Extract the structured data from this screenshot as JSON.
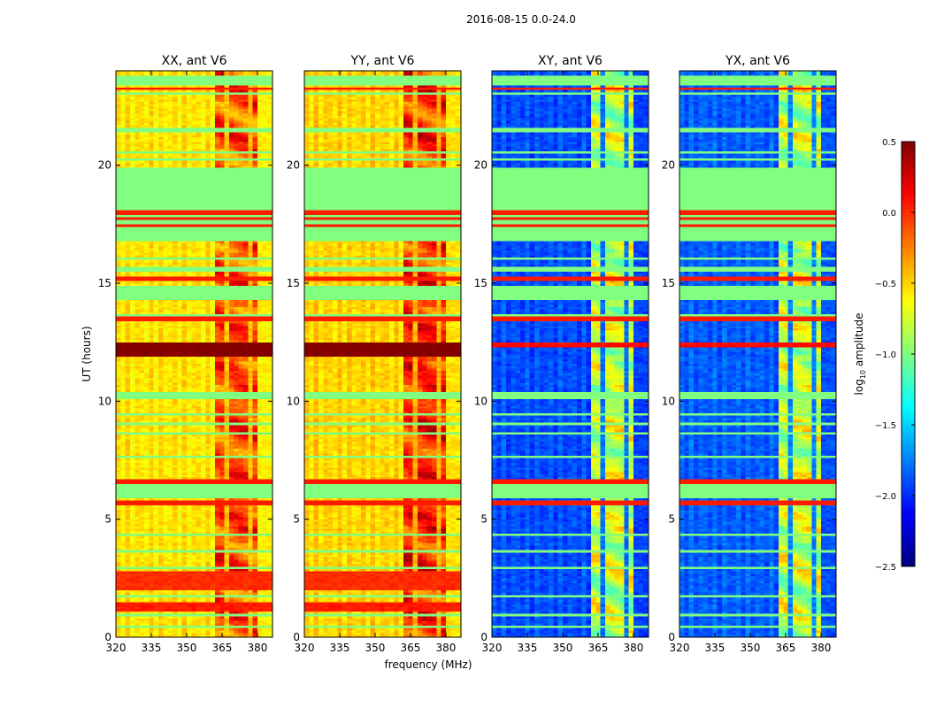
{
  "chart_data": {
    "type": "heatmap",
    "title": "2016-08-15 0.0-24.0",
    "xlabel": "frequency (MHz)",
    "ylabel": "UT (hours)",
    "xlim": [
      320,
      386.4
    ],
    "ylim": [
      0,
      24
    ],
    "xticks": [
      "320",
      "335",
      "350",
      "365",
      "380"
    ],
    "xtick_values": [
      320,
      335,
      350,
      365,
      380
    ],
    "yticks": [
      "0",
      "5",
      "10",
      "15",
      "20"
    ],
    "ytick_values": [
      0,
      5,
      10,
      15,
      20
    ],
    "colormap": "jet",
    "colorbar": {
      "label_main": "log",
      "label_sub": "10",
      "label_rest": " amplitude",
      "range": [
        -2.5,
        0.5
      ],
      "ticks": [
        "0.5",
        "0.0",
        "−0.5",
        "−1.0",
        "−1.5",
        "−2.0",
        "−2.5"
      ],
      "tick_values": [
        0.5,
        0.0,
        -0.5,
        -1.0,
        -1.5,
        -2.0,
        -2.5
      ]
    },
    "flag_value": -1.0,
    "flagged": [
      [
        23.45,
        23.8
      ],
      [
        23.0,
        23.1
      ],
      [
        21.45,
        21.6
      ],
      [
        19.85,
        19.95
      ],
      [
        20.2,
        20.26
      ],
      [
        20.5,
        20.56
      ],
      [
        16.8,
        19.8
      ],
      [
        16.0,
        16.1
      ],
      [
        15.5,
        15.7
      ],
      [
        14.25,
        14.9
      ],
      [
        13.6,
        13.7
      ],
      [
        10.1,
        10.4
      ],
      [
        9.4,
        9.5
      ],
      [
        9.0,
        9.1
      ],
      [
        8.6,
        8.7
      ],
      [
        7.6,
        7.7
      ],
      [
        5.85,
        6.5
      ],
      [
        4.3,
        4.45
      ],
      [
        3.6,
        3.7
      ],
      [
        2.9,
        3.0
      ],
      [
        1.7,
        1.8
      ],
      [
        0.9,
        1.0
      ],
      [
        0.4,
        0.5
      ]
    ],
    "red_lines": [
      23.25,
      17.47,
      17.74,
      18.0,
      15.2,
      13.5,
      6.6,
      5.7
    ],
    "panels": [
      {
        "title": "XX, ant V6",
        "base_low": -0.55,
        "base_high": -0.1,
        "bands": [
          [
            11.9,
            12.5,
            0.5
          ],
          [
            2.0,
            2.8,
            0.0
          ],
          [
            1.1,
            1.5,
            0.05
          ]
        ]
      },
      {
        "title": "YY, ant V6",
        "base_low": -0.5,
        "base_high": 0.0,
        "bands": [
          [
            11.9,
            12.5,
            0.5
          ],
          [
            2.0,
            2.8,
            0.0
          ],
          [
            1.1,
            1.5,
            0.05
          ]
        ]
      },
      {
        "title": "XY, ant V6",
        "base_low": -1.9,
        "base_high": -0.8,
        "bands": [
          [
            12.3,
            12.5,
            0.1
          ],
          [
            6.5,
            6.6,
            0.3
          ]
        ]
      },
      {
        "title": "YX, ant V6",
        "base_low": -1.85,
        "base_high": -0.8,
        "bands": [
          [
            12.3,
            12.5,
            0.1
          ],
          [
            6.5,
            6.6,
            0.3
          ]
        ]
      }
    ]
  }
}
